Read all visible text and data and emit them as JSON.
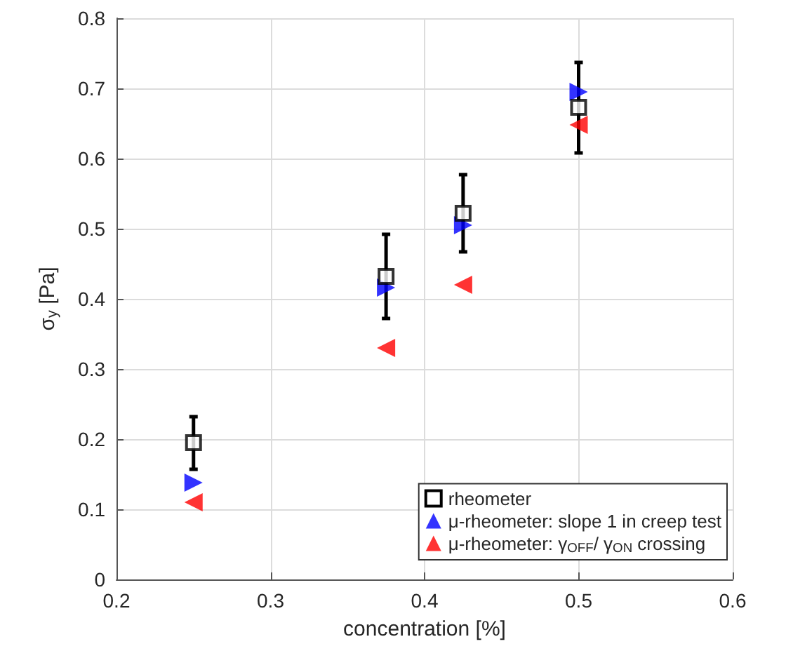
{
  "chart_data": {
    "type": "scatter",
    "xlabel": "concentration [%]",
    "ylabel": "σ$_{y}$ [Pa]",
    "xlim": [
      0.2,
      0.6
    ],
    "xticks": [
      0.2,
      0.3,
      0.4,
      0.5,
      0.6
    ],
    "ylim": [
      0,
      0.8
    ],
    "yticks": [
      0,
      0.1,
      0.2,
      0.3,
      0.4,
      0.5,
      0.6,
      0.7,
      0.8
    ],
    "grid": true,
    "legend": "bottom right",
    "x": [
      0.25,
      0.375,
      0.425,
      0.5
    ],
    "series": [
      {
        "name": "rheometer",
        "color": "#000000",
        "marker": "square",
        "values": [
          0.195,
          0.432,
          0.522,
          0.673
        ],
        "errors": [
          [
            0.157,
            0.232
          ],
          [
            0.372,
            0.492
          ],
          [
            0.467,
            0.577
          ],
          [
            0.608,
            0.737
          ]
        ]
      },
      {
        "name": "μ-rheometer: slope 1 in creep test",
        "color": "#0000ff",
        "marker": "triangle-right",
        "values": [
          0.138,
          0.416,
          0.505,
          0.695
        ]
      },
      {
        "name": "μ-rheometer: γ$_{OFF}$/ γ$_{ON}$ crossing",
        "color": "#ff0000",
        "marker": "triangle-left",
        "values": [
          0.11,
          0.33,
          0.42,
          0.648
        ]
      }
    ]
  }
}
